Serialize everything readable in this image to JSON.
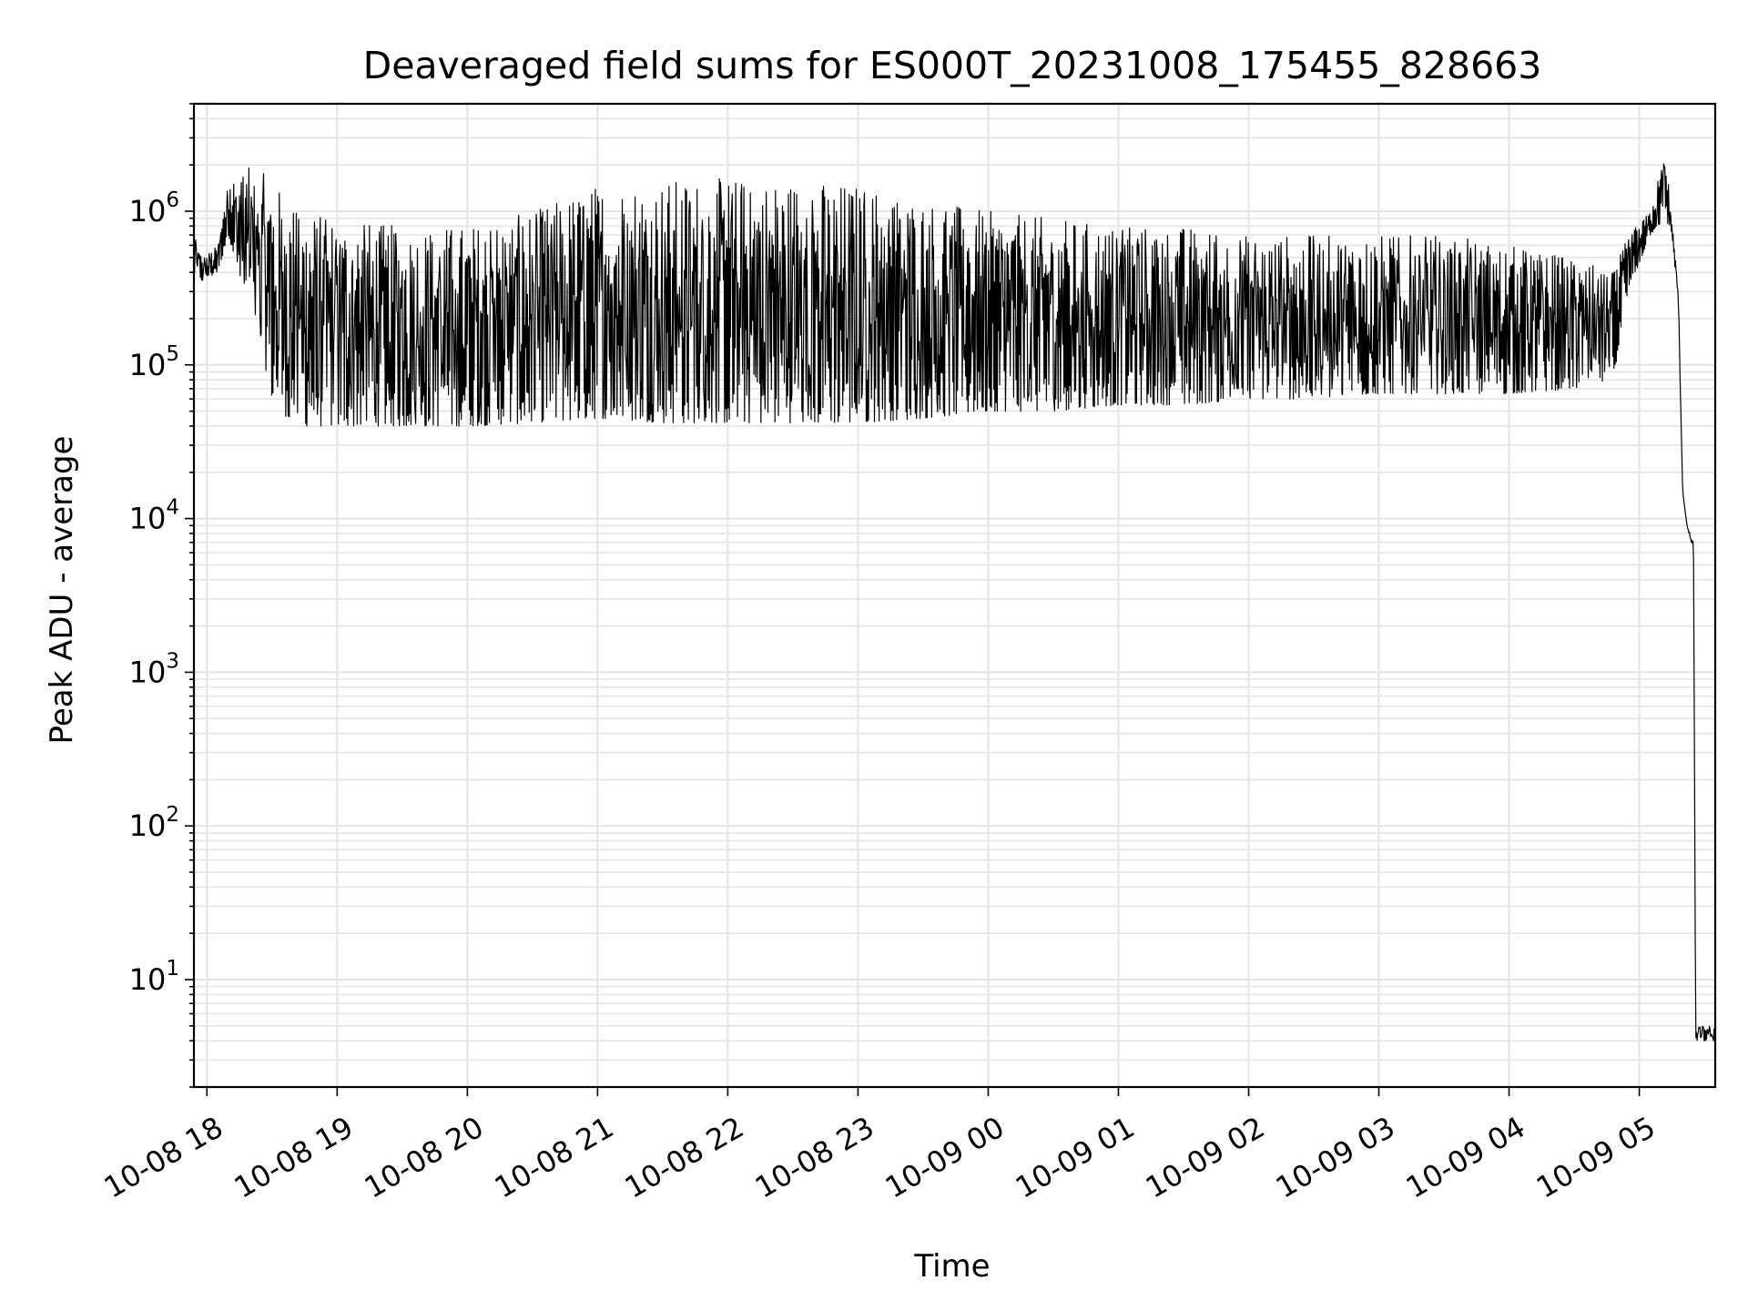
{
  "chart_data": {
    "type": "line",
    "title": "Deaveraged field sums for ES000T_20231008_175455_828663",
    "xlabel": "Time",
    "ylabel": "Peak ADU - average",
    "y_scale": "log",
    "ylim": [
      2,
      5000000
    ],
    "xlim": [
      "2023-10-08 17:54",
      "2023-10-09 05:35"
    ],
    "grid": true,
    "line_color": "#000000",
    "x_ticks": [
      {
        "value": "2023-10-08 18:00",
        "label": "10-08 18"
      },
      {
        "value": "2023-10-08 19:00",
        "label": "10-08 19"
      },
      {
        "value": "2023-10-08 20:00",
        "label": "10-08 20"
      },
      {
        "value": "2023-10-08 21:00",
        "label": "10-08 21"
      },
      {
        "value": "2023-10-08 22:00",
        "label": "10-08 22"
      },
      {
        "value": "2023-10-08 23:00",
        "label": "10-08 23"
      },
      {
        "value": "2023-10-09 00:00",
        "label": "10-09 00"
      },
      {
        "value": "2023-10-09 01:00",
        "label": "10-09 01"
      },
      {
        "value": "2023-10-09 02:00",
        "label": "10-09 02"
      },
      {
        "value": "2023-10-09 03:00",
        "label": "10-09 03"
      },
      {
        "value": "2023-10-09 04:00",
        "label": "10-09 04"
      },
      {
        "value": "2023-10-09 05:00",
        "label": "10-09 05"
      }
    ],
    "y_ticks": [
      {
        "value": 10,
        "base": "10",
        "exp": "1"
      },
      {
        "value": 100,
        "base": "10",
        "exp": "2"
      },
      {
        "value": 1000,
        "base": "10",
        "exp": "3"
      },
      {
        "value": 10000,
        "base": "10",
        "exp": "4"
      },
      {
        "value": 100000,
        "base": "10",
        "exp": "5"
      },
      {
        "value": 1000000,
        "base": "10",
        "exp": "6"
      }
    ],
    "series": [
      {
        "x": [
          "2023-10-08 17:54",
          "2023-10-08 17:58",
          "2023-10-08 18:05",
          "2023-10-08 18:10",
          "2023-10-08 18:15",
          "2023-10-08 18:22",
          "2023-10-08 18:30",
          "2023-10-08 18:37",
          "2023-10-08 18:45",
          "2023-10-08 19:00",
          "2023-10-08 19:30",
          "2023-10-08 20:00",
          "2023-10-08 20:30",
          "2023-10-08 21:00",
          "2023-10-08 21:30",
          "2023-10-08 22:00",
          "2023-10-08 22:30",
          "2023-10-08 23:00",
          "2023-10-08 23:30",
          "2023-10-09 00:00",
          "2023-10-09 00:30",
          "2023-10-09 01:00",
          "2023-10-09 01:30",
          "2023-10-09 02:00",
          "2023-10-09 02:30",
          "2023-10-09 03:00",
          "2023-10-09 03:30",
          "2023-10-09 04:00",
          "2023-10-09 04:30",
          "2023-10-09 04:48",
          "2023-10-09 04:55",
          "2023-10-09 05:05",
          "2023-10-09 05:12",
          "2023-10-09 05:15",
          "2023-10-09 05:18",
          "2023-10-09 05:20",
          "2023-10-09 05:22",
          "2023-10-09 05:25",
          "2023-10-09 05:26",
          "2023-10-09 05:35"
        ],
        "y": [
          700000,
          400000,
          450000,
          1300000,
          900000,
          800000,
          600000,
          150000,
          80000,
          70000,
          60000,
          55000,
          60000,
          80000,
          200000,
          300000,
          300000,
          220000,
          160000,
          110000,
          100000,
          100000,
          100000,
          100000,
          100000,
          100000,
          100000,
          90000,
          110000,
          150000,
          450000,
          800000,
          1000000,
          700000,
          250000,
          15000,
          9000,
          6000,
          4,
          4
        ],
        "lower_envelope": [
          380000,
          350000,
          400000,
          700000,
          350000,
          200000,
          60000,
          45000,
          40000,
          40000,
          40000,
          40000,
          42000,
          45000,
          42000,
          42000,
          42000,
          42000,
          45000,
          50000,
          50000,
          55000,
          55000,
          60000,
          60000,
          65000,
          65000,
          65000,
          70000,
          80000,
          300000,
          700000,
          900000,
          700000,
          250000,
          15000,
          9000,
          6000,
          4,
          4
        ],
        "upper_envelope": [
          700000,
          500000,
          600000,
          1700000,
          1800000,
          2000000,
          1600000,
          1200000,
          1000000,
          900000,
          800000,
          800000,
          1000000,
          1500000,
          1600000,
          1650000,
          1600000,
          1500000,
          1200000,
          1000000,
          900000,
          800000,
          800000,
          700000,
          700000,
          700000,
          700000,
          600000,
          500000,
          400000,
          700000,
          1000000,
          2500000,
          900000,
          300000,
          15000,
          9000,
          7000,
          5,
          5
        ]
      }
    ]
  }
}
